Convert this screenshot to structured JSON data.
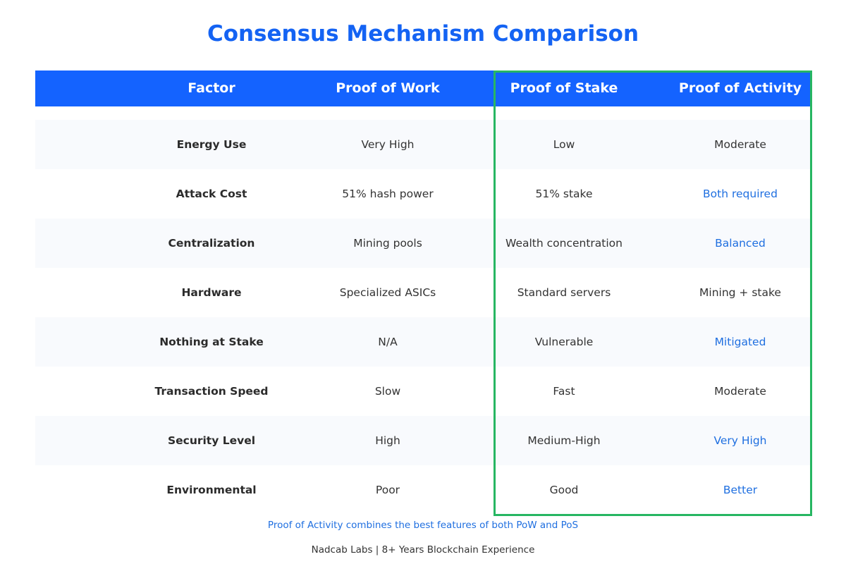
{
  "title": "Consensus Mechanism Comparison",
  "headers": [
    "Factor",
    "Proof of Work",
    "Proof of Stake",
    "Proof of Activity"
  ],
  "rows": [
    {
      "factor": "Energy Use",
      "pow": "Very High",
      "pos": "Low",
      "poa": "Moderate",
      "poa_highlight": false
    },
    {
      "factor": "Attack Cost",
      "pow": "51% hash power",
      "pos": "51% stake",
      "poa": "Both required",
      "poa_highlight": true
    },
    {
      "factor": "Centralization",
      "pow": "Mining pools",
      "pos": "Wealth concentration",
      "poa": "Balanced",
      "poa_highlight": true
    },
    {
      "factor": "Hardware",
      "pow": "Specialized ASICs",
      "pos": "Standard servers",
      "poa": "Mining + stake",
      "poa_highlight": false
    },
    {
      "factor": "Nothing at Stake",
      "pow": "N/A",
      "pos": "Vulnerable",
      "poa": "Mitigated",
      "poa_highlight": true
    },
    {
      "factor": "Transaction Speed",
      "pow": "Slow",
      "pos": "Fast",
      "poa": "Moderate",
      "poa_highlight": false
    },
    {
      "factor": "Security Level",
      "pow": "High",
      "pos": "Medium-High",
      "poa": "Very High",
      "poa_highlight": true
    },
    {
      "factor": "Environmental",
      "pow": "Poor",
      "pos": "Good",
      "poa": "Better",
      "poa_highlight": true
    }
  ],
  "note": "Proof of Activity combines the best features of both PoW and PoS",
  "credit": "Nadcab Labs | 8+ Years Blockchain Experience",
  "colors": {
    "title": "#1463f3",
    "header_bg": "#1463ff",
    "highlight_border": "#27b662",
    "highlight_text": "#1f6fe0",
    "row_shade": "#f8fafd"
  }
}
